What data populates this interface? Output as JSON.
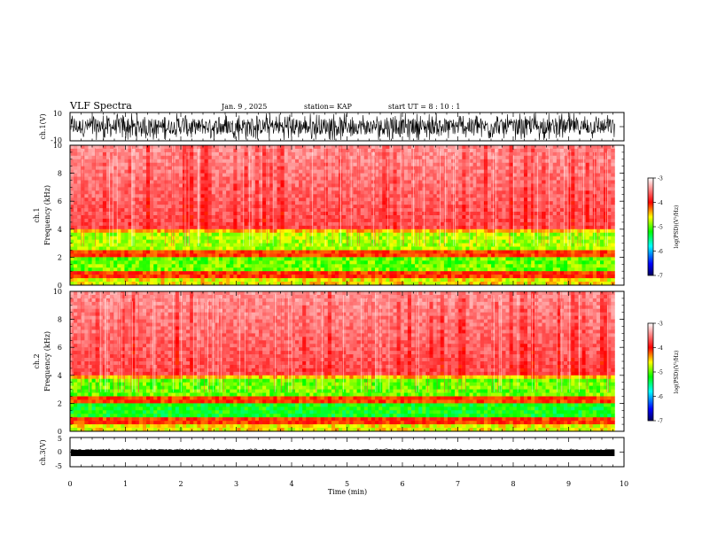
{
  "header": {
    "title": "VLF Spectra",
    "date": "Jan. 9 , 2025",
    "station": "station= KAP",
    "start": "start UT = 8 : 10 : 1"
  },
  "chart_data": [
    {
      "type": "line",
      "name": "ch1-waveform",
      "ylabel": "ch.1(V)",
      "ylim": [
        -10,
        10
      ],
      "yticks": [
        "10",
        "-10"
      ],
      "xlim": [
        0,
        10
      ]
    },
    {
      "type": "heatmap",
      "name": "ch1-spectrogram",
      "ylabel_top": "ch.1",
      "ylabel": "Frequency (kHz)",
      "ylim": [
        0,
        10
      ],
      "yticks": [
        "10",
        "8",
        "6",
        "4",
        "2",
        "0"
      ],
      "xlim": [
        0,
        10
      ],
      "data_end_min": 9.83,
      "colorbar": {
        "label": "log(PSD)(V²/Hz)",
        "range": [
          -7,
          -3
        ],
        "ticks": [
          "-3",
          "-4",
          "-5",
          "-6",
          "-7"
        ]
      }
    },
    {
      "type": "heatmap",
      "name": "ch2-spectrogram",
      "ylabel_top": "ch.2",
      "ylabel": "Frequency (kHz)",
      "ylim": [
        0,
        10
      ],
      "yticks": [
        "10",
        "8",
        "6",
        "4",
        "2",
        "0"
      ],
      "xlim": [
        0,
        10
      ],
      "data_end_min": 9.83,
      "colorbar": {
        "label": "log(PSD)(V²/Hz)",
        "range": [
          -7,
          -3
        ],
        "ticks": [
          "-3",
          "-4",
          "-5",
          "-6",
          "-7"
        ]
      }
    },
    {
      "type": "line",
      "name": "ch3-waveform",
      "ylabel": "ch.3(V)",
      "ylim": [
        -5,
        5
      ],
      "yticks": [
        "5",
        "0",
        "-5"
      ],
      "xlim": [
        0,
        10
      ],
      "xlabel": "Time (min)",
      "xticks": [
        "0",
        "1",
        "2",
        "3",
        "4",
        "5",
        "6",
        "7",
        "8",
        "9",
        "10"
      ]
    }
  ],
  "colors": {
    "cmap": [
      "#000080",
      "#0000ff",
      "#00ffff",
      "#00ff00",
      "#ffff00",
      "#ff0000",
      "#ffffff"
    ],
    "trace": "#000000"
  }
}
